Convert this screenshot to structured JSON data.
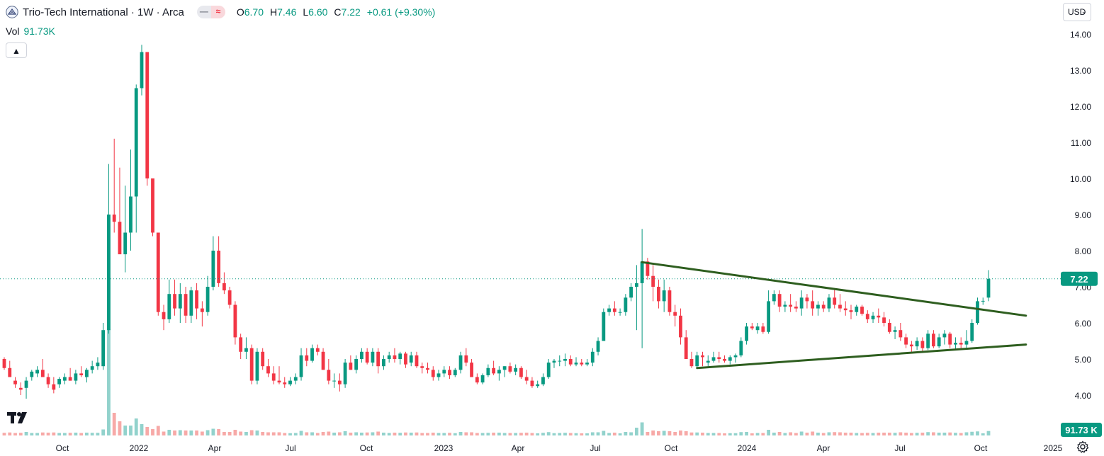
{
  "symbol": {
    "title": "Trio-Tech International · 1W · Arca",
    "open_label": "O",
    "open": "6.70",
    "high_label": "H",
    "high": "7.46",
    "low_label": "L",
    "low": "6.60",
    "close_label": "C",
    "close": "7.22",
    "change": "+0.61 (+9.30%)"
  },
  "volume": {
    "label": "Vol",
    "value": "91.73K",
    "badge": "91.73 K"
  },
  "currency": "USD",
  "last_price_badge": "7.22",
  "colors": {
    "up": "#089981",
    "down": "#f23645",
    "vol_up": "#92d2cc",
    "vol_down": "#f7a9a7",
    "trendline": "#2e5e1f",
    "axis_text": "#131722",
    "last_price_line": "#089981"
  },
  "icons": {
    "collapse": "chevron-up-icon",
    "settings": "gear-icon",
    "logo": "tradingview-logo"
  },
  "chart_data": {
    "type": "candlestick",
    "title": "Trio-Tech International · 1W · Arca",
    "y_axis": {
      "side": "right",
      "ticks": [
        "14.00",
        "13.00",
        "12.00",
        "11.00",
        "10.00",
        "9.00",
        "8.00",
        "7.00",
        "6.00",
        "5.00",
        "4.00"
      ],
      "range": [
        3.3,
        14.6
      ]
    },
    "x_axis": {
      "ticks": [
        "Oct",
        "2022",
        "Apr",
        "Jul",
        "Oct",
        "2023",
        "Apr",
        "Jul",
        "Oct",
        "2024",
        "Apr",
        "Jul",
        "Oct",
        "2025"
      ]
    },
    "grid": false,
    "last_price": 7.22,
    "candles_ohlc": [
      [
        5.0,
        5.05,
        4.7,
        4.75
      ],
      [
        4.75,
        4.95,
        4.5,
        4.5
      ],
      [
        4.4,
        4.5,
        4.2,
        4.3
      ],
      [
        4.2,
        4.35,
        4.0,
        4.15
      ],
      [
        4.2,
        4.5,
        3.9,
        4.4
      ],
      [
        4.5,
        4.7,
        4.4,
        4.65
      ],
      [
        4.6,
        4.8,
        4.5,
        4.7
      ],
      [
        4.7,
        5.0,
        4.55,
        4.5
      ],
      [
        4.5,
        4.6,
        4.2,
        4.3
      ],
      [
        4.3,
        4.5,
        4.05,
        4.15
      ],
      [
        4.3,
        4.5,
        4.2,
        4.45
      ],
      [
        4.4,
        4.6,
        4.3,
        4.5
      ],
      [
        4.5,
        4.75,
        4.4,
        4.4
      ],
      [
        4.4,
        4.7,
        4.3,
        4.6
      ],
      [
        4.6,
        4.8,
        4.5,
        4.55
      ],
      [
        4.5,
        4.75,
        4.35,
        4.7
      ],
      [
        4.7,
        4.95,
        4.6,
        4.8
      ],
      [
        4.8,
        5.05,
        4.7,
        4.9
      ],
      [
        4.8,
        6.0,
        4.7,
        5.8
      ],
      [
        5.8,
        10.4,
        5.7,
        9.0
      ],
      [
        9.0,
        11.1,
        8.5,
        8.8
      ],
      [
        8.8,
        10.3,
        8.1,
        7.9
      ],
      [
        7.9,
        9.8,
        7.4,
        8.5
      ],
      [
        8.5,
        10.8,
        8.0,
        9.5
      ],
      [
        9.5,
        12.6,
        8.5,
        12.5
      ],
      [
        12.5,
        13.7,
        12.3,
        13.5
      ],
      [
        13.5,
        13.5,
        9.8,
        10.0
      ],
      [
        10.0,
        10.0,
        8.4,
        8.5
      ],
      [
        8.5,
        8.5,
        6.2,
        6.3
      ],
      [
        6.3,
        6.5,
        5.8,
        6.1
      ],
      [
        6.1,
        7.2,
        6.0,
        6.8
      ],
      [
        6.8,
        7.2,
        6.2,
        6.4
      ],
      [
        6.4,
        7.1,
        6.0,
        6.8
      ],
      [
        6.8,
        7.0,
        6.0,
        6.2
      ],
      [
        6.2,
        7.0,
        6.0,
        6.9
      ],
      [
        6.9,
        7.1,
        6.1,
        6.4
      ],
      [
        6.4,
        6.6,
        5.9,
        6.3
      ],
      [
        6.3,
        7.3,
        6.2,
        7.0
      ],
      [
        7.0,
        8.4,
        6.9,
        8.0
      ],
      [
        8.0,
        8.4,
        7.0,
        7.1
      ],
      [
        7.1,
        7.4,
        6.8,
        6.9
      ],
      [
        6.9,
        7.0,
        6.4,
        6.5
      ],
      [
        6.5,
        6.6,
        5.4,
        5.6
      ],
      [
        5.6,
        5.7,
        5.0,
        5.2
      ],
      [
        5.2,
        5.6,
        5.0,
        5.3
      ],
      [
        5.3,
        5.4,
        4.3,
        4.4
      ],
      [
        4.4,
        5.3,
        4.3,
        5.2
      ],
      [
        5.2,
        5.3,
        4.7,
        4.8
      ],
      [
        4.8,
        5.0,
        4.5,
        4.6
      ],
      [
        4.6,
        4.8,
        4.3,
        4.4
      ],
      [
        4.4,
        4.8,
        4.3,
        4.35
      ],
      [
        4.35,
        4.5,
        4.2,
        4.3
      ],
      [
        4.3,
        4.5,
        4.25,
        4.4
      ],
      [
        4.4,
        4.6,
        4.3,
        4.5
      ],
      [
        4.5,
        5.3,
        4.4,
        5.1
      ],
      [
        5.1,
        5.3,
        4.8,
        4.95
      ],
      [
        4.95,
        5.4,
        4.9,
        5.3
      ],
      [
        5.3,
        5.4,
        5.1,
        5.2
      ],
      [
        5.2,
        5.3,
        4.7,
        4.7
      ],
      [
        4.7,
        5.0,
        4.3,
        4.4
      ],
      [
        4.4,
        4.6,
        4.2,
        4.4
      ],
      [
        4.4,
        4.6,
        4.1,
        4.3
      ],
      [
        4.3,
        5.0,
        4.2,
        4.9
      ],
      [
        4.9,
        5.1,
        4.7,
        4.7
      ],
      [
        4.7,
        5.1,
        4.6,
        5.0
      ],
      [
        5.0,
        5.3,
        4.9,
        5.2
      ],
      [
        5.2,
        5.3,
        4.85,
        4.9
      ],
      [
        4.9,
        5.3,
        4.8,
        5.2
      ],
      [
        5.2,
        5.3,
        4.6,
        4.8
      ],
      [
        4.8,
        5.1,
        4.7,
        5.0
      ],
      [
        5.0,
        5.2,
        4.9,
        5.1
      ],
      [
        5.1,
        5.3,
        4.9,
        5.0
      ],
      [
        5.0,
        5.2,
        4.85,
        5.15
      ],
      [
        5.15,
        5.2,
        4.75,
        4.85
      ],
      [
        4.9,
        5.2,
        4.8,
        5.1
      ],
      [
        5.1,
        5.2,
        4.75,
        4.8
      ],
      [
        4.8,
        4.9,
        4.6,
        4.75
      ],
      [
        4.75,
        4.9,
        4.6,
        4.7
      ],
      [
        4.7,
        4.8,
        4.4,
        4.5
      ],
      [
        4.5,
        4.7,
        4.4,
        4.6
      ],
      [
        4.6,
        4.8,
        4.5,
        4.7
      ],
      [
        4.7,
        4.8,
        4.45,
        4.55
      ],
      [
        4.55,
        4.75,
        4.5,
        4.7
      ],
      [
        4.7,
        5.2,
        4.6,
        5.1
      ],
      [
        5.1,
        5.3,
        4.8,
        4.9
      ],
      [
        4.9,
        5.0,
        4.5,
        4.5
      ],
      [
        4.5,
        4.6,
        4.3,
        4.35
      ],
      [
        4.35,
        4.6,
        4.3,
        4.55
      ],
      [
        4.55,
        4.85,
        4.5,
        4.75
      ],
      [
        4.75,
        4.95,
        4.55,
        4.6
      ],
      [
        4.6,
        4.8,
        4.4,
        4.7
      ],
      [
        4.7,
        4.8,
        4.5,
        4.8
      ],
      [
        4.8,
        4.9,
        4.6,
        4.65
      ],
      [
        4.65,
        4.85,
        4.55,
        4.75
      ],
      [
        4.75,
        4.8,
        4.45,
        4.5
      ],
      [
        4.5,
        4.7,
        4.3,
        4.4
      ],
      [
        4.4,
        4.5,
        4.2,
        4.25
      ],
      [
        4.25,
        4.4,
        4.2,
        4.3
      ],
      [
        4.3,
        4.6,
        4.25,
        4.5
      ],
      [
        4.5,
        5.0,
        4.45,
        4.9
      ],
      [
        4.9,
        5.0,
        4.75,
        4.95
      ],
      [
        4.95,
        5.1,
        4.8,
        4.95
      ],
      [
        4.95,
        5.15,
        4.8,
        5.0
      ],
      [
        5.0,
        5.1,
        4.8,
        4.85
      ],
      [
        4.85,
        5.05,
        4.8,
        4.9
      ],
      [
        4.9,
        5.0,
        4.8,
        4.85
      ],
      [
        4.85,
        5.0,
        4.8,
        4.9
      ],
      [
        4.9,
        5.3,
        4.8,
        5.2
      ],
      [
        5.2,
        5.6,
        5.1,
        5.5
      ],
      [
        5.5,
        6.4,
        5.5,
        6.3
      ],
      [
        6.3,
        6.5,
        6.2,
        6.4
      ],
      [
        6.4,
        6.6,
        6.2,
        6.3
      ],
      [
        6.3,
        6.4,
        6.2,
        6.3
      ],
      [
        6.3,
        6.8,
        6.2,
        6.7
      ],
      [
        6.7,
        7.1,
        6.6,
        7.0
      ],
      [
        7.0,
        7.6,
        5.8,
        7.1
      ],
      [
        7.1,
        8.6,
        5.3,
        7.7
      ],
      [
        7.7,
        7.8,
        7.2,
        7.3
      ],
      [
        7.3,
        7.6,
        6.6,
        7.0
      ],
      [
        7.0,
        7.2,
        6.4,
        6.6
      ],
      [
        6.6,
        7.2,
        6.3,
        6.9
      ],
      [
        6.9,
        7.0,
        6.2,
        6.3
      ],
      [
        6.3,
        6.5,
        5.9,
        6.2
      ],
      [
        6.2,
        6.4,
        5.4,
        5.6
      ],
      [
        5.6,
        5.8,
        5.0,
        5.0
      ],
      [
        5.0,
        5.2,
        4.75,
        4.8
      ],
      [
        4.8,
        5.2,
        4.75,
        5.1
      ],
      [
        5.1,
        5.2,
        4.8,
        5.05
      ],
      [
        4.9,
        5.1,
        4.8,
        4.95
      ],
      [
        4.95,
        5.2,
        4.9,
        5.05
      ],
      [
        5.05,
        5.2,
        4.9,
        5.0
      ],
      [
        5.0,
        5.1,
        4.9,
        4.95
      ],
      [
        4.95,
        5.1,
        4.85,
        5.05
      ],
      [
        5.05,
        5.15,
        4.9,
        5.1
      ],
      [
        5.1,
        5.6,
        5.05,
        5.5
      ],
      [
        5.5,
        6.0,
        5.4,
        5.9
      ],
      [
        5.9,
        6.0,
        5.8,
        5.85
      ],
      [
        5.8,
        6.0,
        5.7,
        5.9
      ],
      [
        5.9,
        6.0,
        5.7,
        5.75
      ],
      [
        5.75,
        6.9,
        5.7,
        6.6
      ],
      [
        6.6,
        6.9,
        6.5,
        6.8
      ],
      [
        6.8,
        6.9,
        6.3,
        6.45
      ],
      [
        6.45,
        6.6,
        6.3,
        6.5
      ],
      [
        6.5,
        6.8,
        6.3,
        6.45
      ],
      [
        6.45,
        6.6,
        6.3,
        6.4
      ],
      [
        6.4,
        6.9,
        6.2,
        6.7
      ],
      [
        6.7,
        6.8,
        6.4,
        6.6
      ],
      [
        6.6,
        6.9,
        6.2,
        6.4
      ],
      [
        6.4,
        6.6,
        6.2,
        6.5
      ],
      [
        6.5,
        6.6,
        6.3,
        6.4
      ],
      [
        6.4,
        6.8,
        6.3,
        6.7
      ],
      [
        6.7,
        6.95,
        6.4,
        6.5
      ],
      [
        6.5,
        6.8,
        6.3,
        6.4
      ],
      [
        6.4,
        6.6,
        6.2,
        6.35
      ],
      [
        6.35,
        6.5,
        6.1,
        6.3
      ],
      [
        6.3,
        6.5,
        6.2,
        6.45
      ],
      [
        6.45,
        6.5,
        6.2,
        6.25
      ],
      [
        6.25,
        6.35,
        6.0,
        6.1
      ],
      [
        6.1,
        6.3,
        6.0,
        6.2
      ],
      [
        6.2,
        6.4,
        6.0,
        6.15
      ],
      [
        6.15,
        6.3,
        5.9,
        6.0
      ],
      [
        6.0,
        6.1,
        5.7,
        5.75
      ],
      [
        5.75,
        5.9,
        5.55,
        5.8
      ],
      [
        5.8,
        6.0,
        5.5,
        5.6
      ],
      [
        5.6,
        5.7,
        5.3,
        5.4
      ],
      [
        5.4,
        5.5,
        5.2,
        5.35
      ],
      [
        5.35,
        5.6,
        5.25,
        5.5
      ],
      [
        5.5,
        5.6,
        5.2,
        5.3
      ],
      [
        5.3,
        5.8,
        5.25,
        5.7
      ],
      [
        5.7,
        5.8,
        5.3,
        5.35
      ],
      [
        5.35,
        5.7,
        5.3,
        5.6
      ],
      [
        5.6,
        5.8,
        5.4,
        5.7
      ],
      [
        5.7,
        5.75,
        5.3,
        5.4
      ],
      [
        5.4,
        5.6,
        5.25,
        5.45
      ],
      [
        5.45,
        5.6,
        5.3,
        5.4
      ],
      [
        5.4,
        5.8,
        5.3,
        5.5
      ],
      [
        5.5,
        6.1,
        5.45,
        6.0
      ],
      [
        6.0,
        6.7,
        5.95,
        6.6
      ],
      [
        6.6,
        6.7,
        6.5,
        6.61
      ],
      [
        6.7,
        7.46,
        6.6,
        7.22
      ]
    ],
    "volume_series": "per-candle volume bars along bottom (spikes near Dec 2021)",
    "trendlines": [
      {
        "name": "",
        "from_price": 7.68,
        "to_price": 6.2
      },
      {
        "name": "",
        "from_price": 4.75,
        "to_price": 5.4
      }
    ]
  }
}
